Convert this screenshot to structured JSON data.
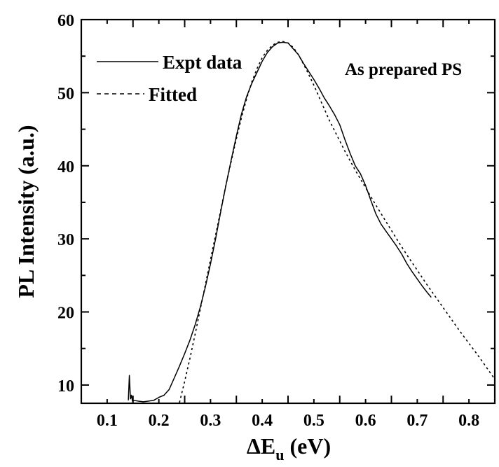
{
  "chart_data": {
    "type": "line",
    "xlabel_main": "ΔE",
    "xlabel_sub": "u",
    "xlabel_units": " (eV)",
    "ylabel": "PL Intensity (a.u.)",
    "annotation": "As prepared PS",
    "xlim": [
      0.05,
      0.85
    ],
    "ylim": [
      7.5,
      60
    ],
    "x_ticks": [
      0.1,
      0.2,
      0.3,
      0.4,
      0.5,
      0.6,
      0.7,
      0.8
    ],
    "x_tick_labels": [
      "0.1",
      "0.2",
      "0.3",
      "0.4",
      "0.5",
      "0.6",
      "0.7",
      "0.8"
    ],
    "y_ticks": [
      10,
      20,
      30,
      40,
      50,
      60
    ],
    "y_tick_labels": [
      "10",
      "20",
      "30",
      "40",
      "50",
      "60"
    ],
    "grid": false,
    "legend_position": "top-left",
    "colors": {
      "line": "#000000",
      "background": "#ffffff"
    },
    "series": [
      {
        "name": "Expt data",
        "style": "solid",
        "x": [
          0.141,
          0.143,
          0.145,
          0.147,
          0.149,
          0.152,
          0.16,
          0.17,
          0.18,
          0.19,
          0.2,
          0.21,
          0.22,
          0.23,
          0.24,
          0.25,
          0.26,
          0.27,
          0.28,
          0.29,
          0.3,
          0.31,
          0.32,
          0.33,
          0.34,
          0.35,
          0.36,
          0.37,
          0.38,
          0.39,
          0.4,
          0.41,
          0.42,
          0.43,
          0.44,
          0.45,
          0.46,
          0.47,
          0.48,
          0.49,
          0.5,
          0.51,
          0.52,
          0.53,
          0.54,
          0.55,
          0.56,
          0.57,
          0.58,
          0.59,
          0.6,
          0.61,
          0.62,
          0.63,
          0.64,
          0.65,
          0.66,
          0.67,
          0.68,
          0.69,
          0.7,
          0.71,
          0.72,
          0.727
        ],
        "y": [
          7.9,
          11.3,
          8.1,
          8.6,
          7.8,
          7.9,
          7.8,
          7.7,
          7.8,
          7.9,
          8.3,
          8.6,
          9.4,
          11.0,
          12.6,
          14.3,
          16.1,
          18.2,
          20.6,
          23.4,
          26.6,
          30.1,
          33.8,
          37.4,
          40.8,
          44.1,
          47.1,
          49.5,
          51.3,
          52.8,
          54.3,
          55.5,
          56.3,
          56.8,
          56.9,
          56.8,
          56.0,
          55.2,
          54.0,
          52.9,
          51.8,
          50.6,
          49.3,
          48.2,
          47.0,
          45.6,
          43.6,
          41.7,
          40.0,
          38.9,
          37.3,
          35.3,
          33.4,
          32.0,
          31.0,
          30.0,
          29.0,
          27.9,
          26.6,
          25.5,
          24.5,
          23.5,
          22.6,
          22.0
        ]
      },
      {
        "name": "Fitted",
        "style": "dashed",
        "x": [
          0.24,
          0.25,
          0.26,
          0.27,
          0.28,
          0.29,
          0.3,
          0.31,
          0.32,
          0.33,
          0.34,
          0.35,
          0.36,
          0.37,
          0.38,
          0.39,
          0.4,
          0.41,
          0.42,
          0.43,
          0.44,
          0.45,
          0.46,
          0.47,
          0.48,
          0.49,
          0.5,
          0.51,
          0.52,
          0.53,
          0.54,
          0.55,
          0.56,
          0.57,
          0.58,
          0.59,
          0.6,
          0.62,
          0.64,
          0.66,
          0.68,
          0.7,
          0.72,
          0.74,
          0.76,
          0.78,
          0.8,
          0.82,
          0.84,
          0.85
        ],
        "y": [
          7.6,
          10.5,
          13.6,
          16.9,
          20.3,
          23.7,
          27.2,
          30.6,
          34.0,
          37.4,
          40.6,
          43.7,
          46.6,
          49.2,
          51.5,
          53.3,
          54.8,
          55.8,
          56.5,
          56.9,
          57.0,
          56.8,
          56.2,
          55.2,
          53.9,
          52.5,
          51.0,
          49.4,
          47.8,
          46.2,
          44.8,
          43.4,
          42.0,
          40.7,
          39.4,
          38.2,
          37.0,
          34.6,
          32.3,
          30.0,
          27.8,
          25.7,
          23.6,
          21.6,
          19.6,
          17.6,
          15.7,
          13.8,
          11.8,
          10.8
        ]
      }
    ]
  }
}
